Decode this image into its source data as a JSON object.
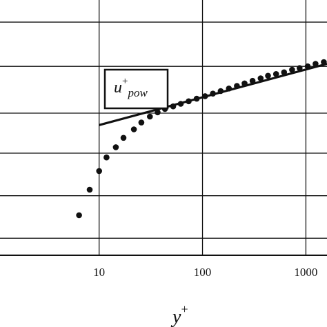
{
  "chart_data": {
    "type": "scatter",
    "x_scale": "log",
    "grid": true,
    "xlabel": {
      "main": "y",
      "sup": "+"
    },
    "x_ticks": [
      {
        "value": 10,
        "label": "10"
      },
      {
        "value": 100,
        "label": "100"
      },
      {
        "value": 1000,
        "label": "1000"
      }
    ],
    "xlim": [
      1.1,
      1600
    ],
    "ylim": [
      0,
      30
    ],
    "y_gridlines": [
      2,
      7,
      12,
      16.7,
      22.2,
      27.4
    ],
    "legend": {
      "main": "u",
      "sup": "+",
      "sub": "pow",
      "placement": "center-left"
    },
    "series": [
      {
        "name": "u+pow",
        "style": "line",
        "x": [
          10,
          1600
        ],
        "y": [
          15.3,
          22.5
        ]
      },
      {
        "style": "markers",
        "x": [
          6.4,
          8.1,
          10,
          11.8,
          14.5,
          17.2,
          21.7,
          25.6,
          31,
          36.8,
          43.3,
          52,
          61.6,
          73.5,
          87.9,
          106,
          126,
          150,
          180,
          215,
          255,
          305,
          365,
          430,
          515,
          615,
          735,
          870,
          1040,
          1240,
          1490
        ],
        "y": [
          4.7,
          7.7,
          9.9,
          11.5,
          12.7,
          13.8,
          14.8,
          15.6,
          16.3,
          16.8,
          17.2,
          17.5,
          17.8,
          18.1,
          18.4,
          18.7,
          19.0,
          19.3,
          19.6,
          19.9,
          20.2,
          20.5,
          20.8,
          21.1,
          21.3,
          21.5,
          21.8,
          22.0,
          22.2,
          22.5,
          22.7
        ]
      }
    ]
  }
}
